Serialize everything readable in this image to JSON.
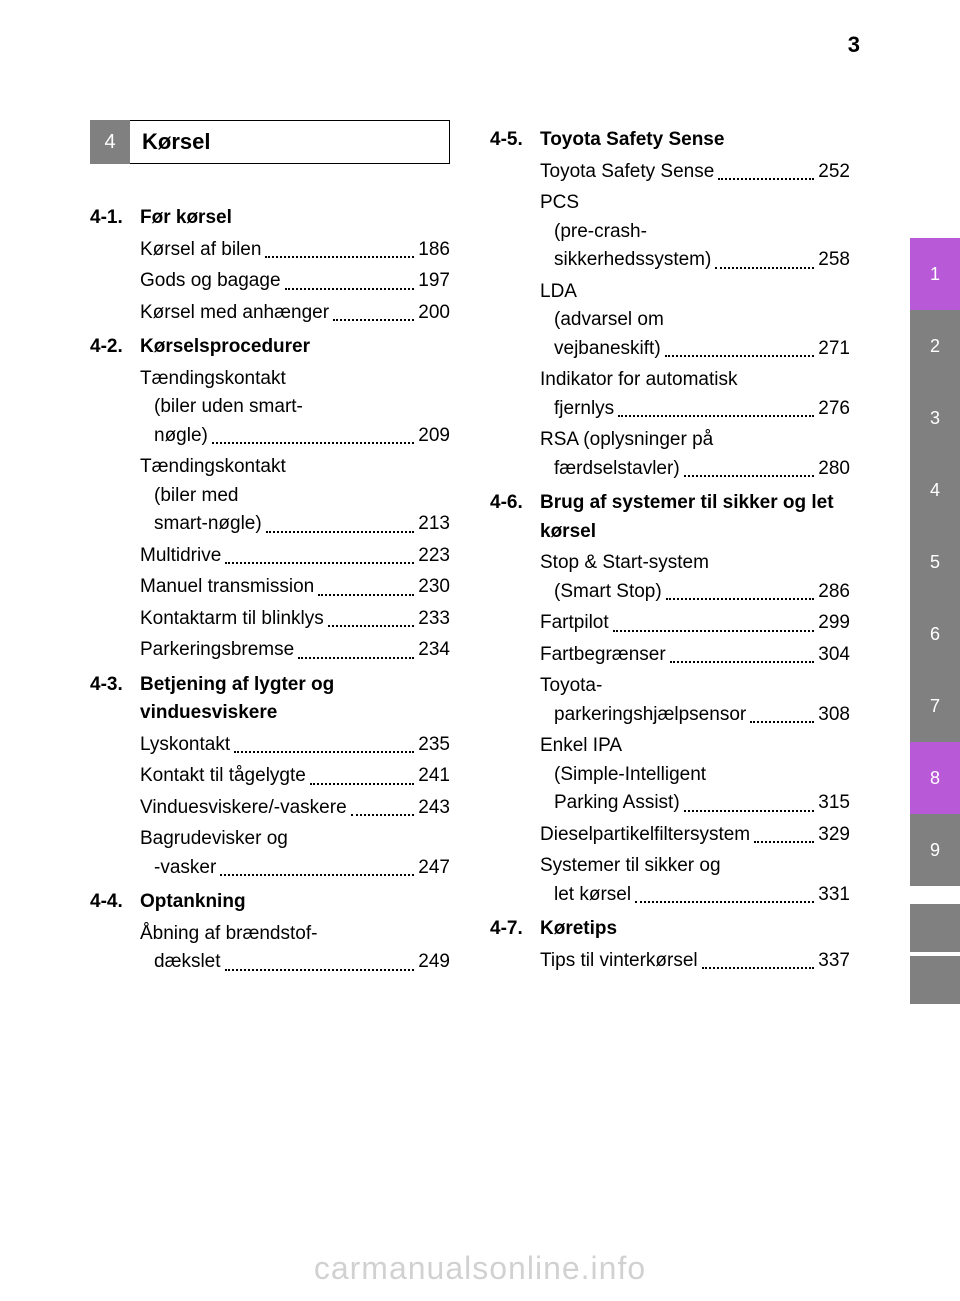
{
  "page_number_top": "3",
  "chapter": {
    "num": "4",
    "title": "Kørsel"
  },
  "left_sections": [
    {
      "num": "4-1.",
      "title": "Før kørsel",
      "entries": [
        {
          "type": "single",
          "label": "Kørsel af bilen",
          "page": "186"
        },
        {
          "type": "single",
          "label": "Gods og bagage",
          "page": "197"
        },
        {
          "type": "single",
          "label": "Kørsel med anhænger",
          "page": "200"
        }
      ]
    },
    {
      "num": "4-2.",
      "title": "Kørselsprocedurer",
      "entries": [
        {
          "type": "multi",
          "lines": [
            "Tændingskontakt",
            "(biler uden smart-"
          ],
          "last_label": "nøgle)",
          "last_indent": true,
          "page": "209"
        },
        {
          "type": "multi",
          "lines": [
            "Tændingskontakt",
            "(biler med"
          ],
          "last_label": "smart-nøgle)",
          "last_indent": true,
          "page": "213"
        },
        {
          "type": "single",
          "label": "Multidrive",
          "page": "223"
        },
        {
          "type": "single",
          "label": "Manuel transmission",
          "page": "230"
        },
        {
          "type": "single",
          "label": "Kontaktarm til blinklys",
          "page": "233"
        },
        {
          "type": "single",
          "label": "Parkeringsbremse",
          "page": "234"
        }
      ]
    },
    {
      "num": "4-3.",
      "title": "Betjening af lygter og vinduesviskere",
      "entries": [
        {
          "type": "single",
          "label": "Lyskontakt",
          "page": "235"
        },
        {
          "type": "single",
          "label": "Kontakt til tågelygte",
          "page": "241"
        },
        {
          "type": "single",
          "label": "Vinduesviskere/-vaskere",
          "page": "243"
        },
        {
          "type": "multi",
          "lines": [
            "Bagrudevisker og"
          ],
          "last_label": "-vasker",
          "last_indent": true,
          "page": "247"
        }
      ]
    },
    {
      "num": "4-4.",
      "title": "Optankning",
      "entries": [
        {
          "type": "multi",
          "lines": [
            "Åbning af brændstof-"
          ],
          "last_label": "dækslet",
          "last_indent": true,
          "page": "249"
        }
      ]
    }
  ],
  "right_sections": [
    {
      "num": "4-5.",
      "title": "Toyota Safety Sense",
      "entries": [
        {
          "type": "single",
          "label": "Toyota Safety Sense",
          "page": "252"
        },
        {
          "type": "multi",
          "lines": [
            "PCS",
            "(pre-crash-"
          ],
          "last_label": "sikkerhedssystem)",
          "last_indent": true,
          "page": "258"
        },
        {
          "type": "multi",
          "lines": [
            "LDA",
            "(advarsel om"
          ],
          "last_label": "vejbaneskift)",
          "last_indent": true,
          "page": "271"
        },
        {
          "type": "multi",
          "lines": [
            "Indikator for automatisk"
          ],
          "last_label": "fjernlys",
          "last_indent": true,
          "page": "276"
        },
        {
          "type": "multi",
          "lines": [
            "RSA (oplysninger på"
          ],
          "last_label": "færdselstavler)",
          "last_indent": true,
          "page": "280"
        }
      ]
    },
    {
      "num": "4-6.",
      "title": "Brug af systemer til sikker og let kørsel",
      "entries": [
        {
          "type": "multi",
          "lines": [
            "Stop & Start-system"
          ],
          "last_label": "(Smart Stop)",
          "last_indent": true,
          "page": "286"
        },
        {
          "type": "single",
          "label": "Fartpilot",
          "page": "299"
        },
        {
          "type": "single",
          "label": "Fartbegrænser",
          "page": "304"
        },
        {
          "type": "multi",
          "lines": [
            "Toyota-"
          ],
          "last_label": "parkeringshjælpsensor",
          "last_indent": true,
          "page": "308"
        },
        {
          "type": "multi",
          "lines": [
            "Enkel IPA",
            "(Simple-Intelligent"
          ],
          "last_label": "Parking Assist)",
          "last_indent": true,
          "page": "315"
        },
        {
          "type": "single",
          "label": "Dieselpartikelfiltersystem",
          "page": "329"
        },
        {
          "type": "multi",
          "lines": [
            "Systemer til sikker og"
          ],
          "last_label": "let kørsel",
          "last_indent": true,
          "page": "331"
        }
      ]
    },
    {
      "num": "4-7.",
      "title": "Køretips",
      "entries": [
        {
          "type": "single",
          "label": "Tips til vinterkørsel",
          "page": "337"
        }
      ]
    }
  ],
  "tabs": [
    {
      "label": "1",
      "color": "purple"
    },
    {
      "label": "2",
      "color": "gray"
    },
    {
      "label": "3",
      "color": "gray"
    },
    {
      "label": "4",
      "color": "gray"
    },
    {
      "label": "5",
      "color": "gray"
    },
    {
      "label": "6",
      "color": "gray"
    },
    {
      "label": "7",
      "color": "gray"
    },
    {
      "label": "8",
      "color": "purple"
    },
    {
      "label": "9",
      "color": "gray"
    }
  ],
  "watermark": "carmanualsonline.info"
}
